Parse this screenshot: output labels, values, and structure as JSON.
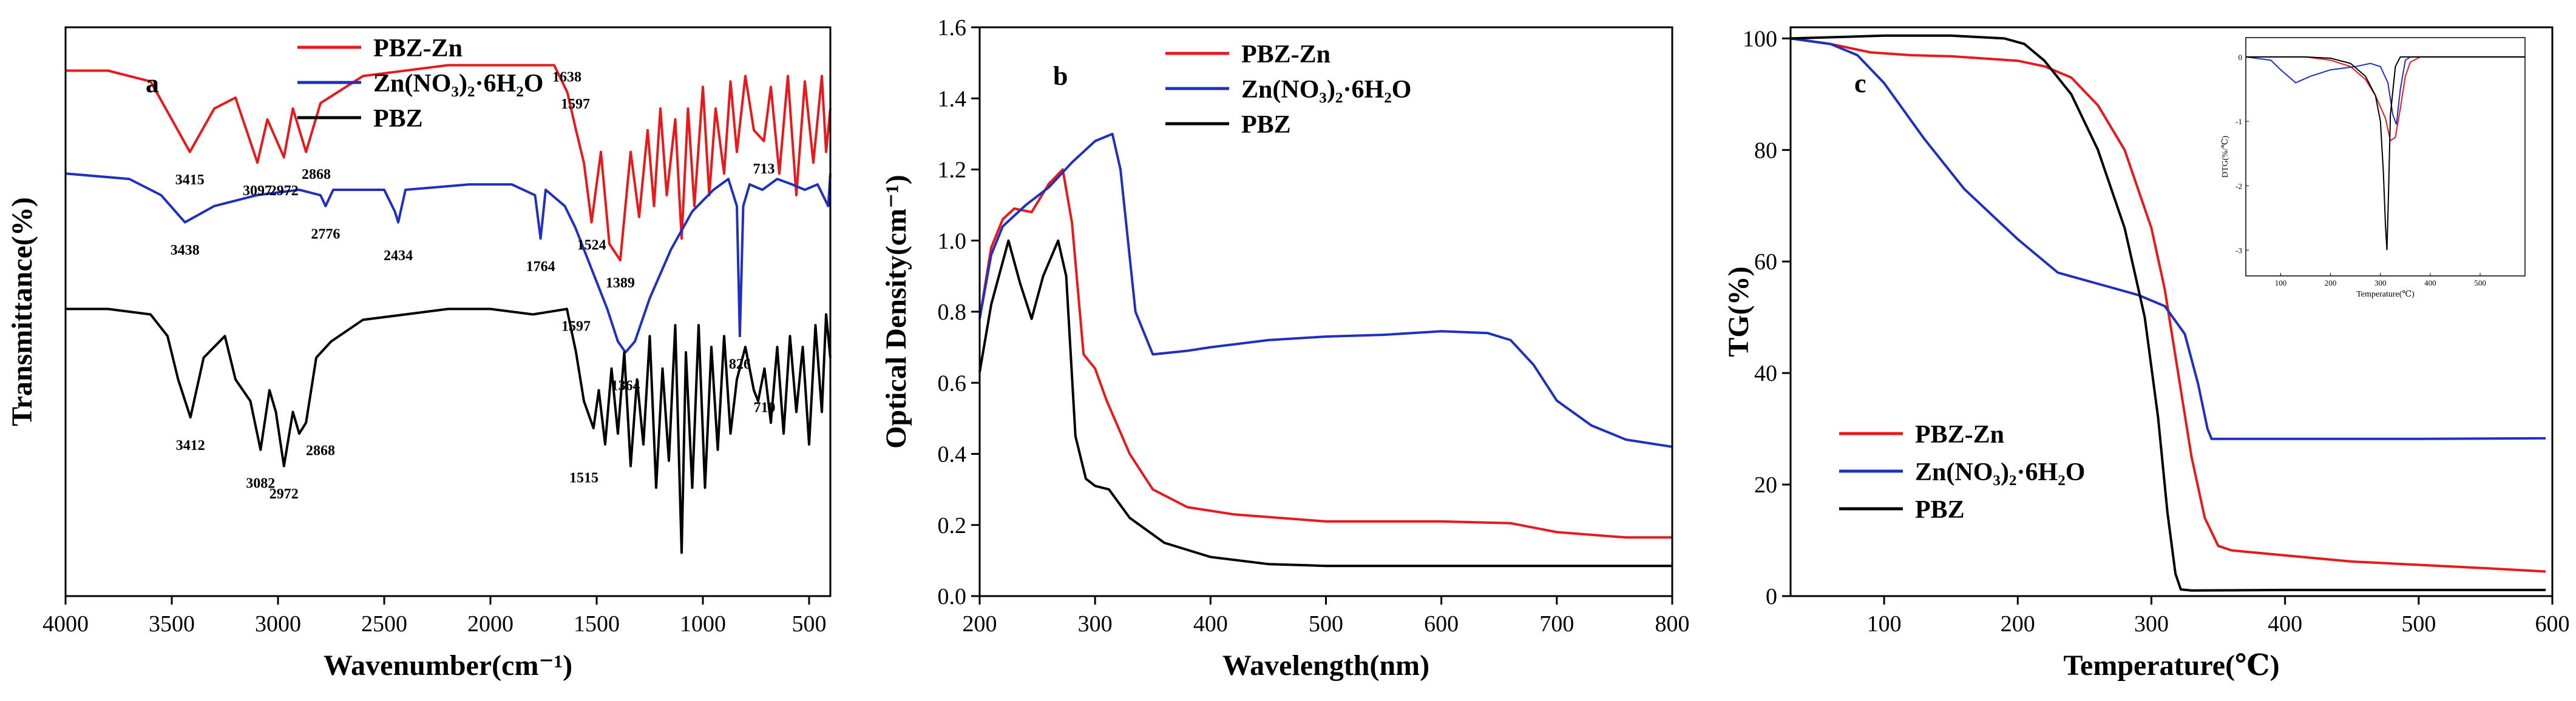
{
  "colors": {
    "red": "#e8191b",
    "blue": "#1f2fc0",
    "black": "#000000"
  },
  "chart_data": [
    {
      "panel": "a",
      "type": "line",
      "xlabel": "Wavenumber(cm⁻¹)",
      "ylabel": "Transmittance(%)",
      "xlim": [
        4000,
        400
      ],
      "xticks": [
        4000,
        3500,
        3000,
        2500,
        2000,
        1500,
        1000,
        500
      ],
      "yticks_shown": false,
      "legend": {
        "position": "top-left",
        "entries": [
          "PBZ-Zn",
          "Zn(NO₃)₂·6H₂O",
          "PBZ"
        ]
      },
      "series": [
        {
          "name": "PBZ-Zn",
          "color": "red",
          "x": [
            4000,
            3800,
            3600,
            3500,
            3415,
            3300,
            3200,
            3097,
            3050,
            2972,
            2930,
            2868,
            2800,
            2600,
            2200,
            1700,
            1638,
            1597,
            1560,
            1524,
            1480,
            1440,
            1389,
            1340,
            1300,
            1260,
            1230,
            1200,
            1170,
            1130,
            1100,
            1070,
            1040,
            1000,
            970,
            940,
            900,
            870,
            840,
            800,
            760,
            713,
            680,
            640,
            600,
            560,
            520,
            480,
            440,
            420,
            400
          ],
          "y": [
            0.97,
            0.97,
            0.95,
            0.88,
            0.82,
            0.9,
            0.92,
            0.8,
            0.88,
            0.81,
            0.9,
            0.82,
            0.91,
            0.96,
            0.98,
            0.98,
            0.93,
            0.86,
            0.8,
            0.69,
            0.82,
            0.65,
            0.62,
            0.82,
            0.7,
            0.86,
            0.72,
            0.9,
            0.74,
            0.88,
            0.66,
            0.9,
            0.72,
            0.94,
            0.74,
            0.9,
            0.78,
            0.95,
            0.82,
            0.96,
            0.86,
            0.84,
            0.94,
            0.78,
            0.96,
            0.74,
            0.95,
            0.8,
            0.96,
            0.82,
            0.9
          ]
        },
        {
          "name": "Zn(NO₃)₂·6H₂O",
          "color": "blue",
          "x": [
            4000,
            3700,
            3550,
            3438,
            3300,
            3100,
            2900,
            2800,
            2776,
            2740,
            2500,
            2450,
            2434,
            2400,
            2100,
            1900,
            1790,
            1764,
            1740,
            1650,
            1600,
            1550,
            1500,
            1450,
            1400,
            1364,
            1320,
            1250,
            1150,
            1050,
            950,
            880,
            840,
            826,
            810,
            780,
            720,
            650,
            580,
            520,
            460,
            410,
            400
          ],
          "y": [
            0.78,
            0.77,
            0.74,
            0.69,
            0.72,
            0.74,
            0.75,
            0.74,
            0.72,
            0.75,
            0.75,
            0.71,
            0.69,
            0.75,
            0.76,
            0.76,
            0.74,
            0.66,
            0.75,
            0.72,
            0.68,
            0.63,
            0.58,
            0.53,
            0.47,
            0.45,
            0.47,
            0.55,
            0.64,
            0.71,
            0.75,
            0.77,
            0.72,
            0.48,
            0.72,
            0.76,
            0.75,
            0.77,
            0.76,
            0.75,
            0.76,
            0.72,
            0.78
          ]
        },
        {
          "name": "PBZ",
          "color": "black",
          "x": [
            4000,
            3800,
            3600,
            3520,
            3470,
            3412,
            3350,
            3250,
            3200,
            3130,
            3082,
            3040,
            3010,
            2972,
            2930,
            2900,
            2868,
            2820,
            2750,
            2600,
            2400,
            2200,
            2000,
            1800,
            1640,
            1597,
            1560,
            1515,
            1490,
            1460,
            1430,
            1400,
            1370,
            1340,
            1310,
            1280,
            1250,
            1220,
            1190,
            1160,
            1130,
            1100,
            1080,
            1050,
            1020,
            990,
            960,
            930,
            900,
            870,
            840,
            800,
            760,
            740,
            710,
            680,
            650,
            620,
            590,
            560,
            530,
            500,
            470,
            440,
            420,
            400
          ],
          "y": [
            0.53,
            0.53,
            0.52,
            0.48,
            0.4,
            0.33,
            0.44,
            0.48,
            0.4,
            0.36,
            0.27,
            0.38,
            0.34,
            0.24,
            0.34,
            0.3,
            0.32,
            0.44,
            0.47,
            0.51,
            0.52,
            0.53,
            0.53,
            0.52,
            0.53,
            0.45,
            0.36,
            0.31,
            0.38,
            0.28,
            0.42,
            0.3,
            0.45,
            0.24,
            0.4,
            0.28,
            0.48,
            0.2,
            0.42,
            0.25,
            0.5,
            0.08,
            0.45,
            0.2,
            0.5,
            0.2,
            0.46,
            0.27,
            0.48,
            0.3,
            0.4,
            0.46,
            0.38,
            0.36,
            0.42,
            0.32,
            0.46,
            0.3,
            0.48,
            0.34,
            0.46,
            0.28,
            0.5,
            0.34,
            0.52,
            0.44
          ]
        }
      ],
      "annotations": [
        {
          "text": "3415",
          "x": 3415,
          "y": 0.76
        },
        {
          "text": "3097",
          "x": 3097,
          "y": 0.74
        },
        {
          "text": "2972",
          "x": 2972,
          "y": 0.74
        },
        {
          "text": "2868",
          "x": 2820,
          "y": 0.77
        },
        {
          "text": "1638",
          "x": 1640,
          "y": 0.95
        },
        {
          "text": "1597",
          "x": 1600,
          "y": 0.9
        },
        {
          "text": "1524",
          "x": 1524,
          "y": 0.64
        },
        {
          "text": "1389",
          "x": 1389,
          "y": 0.57
        },
        {
          "text": "713",
          "x": 713,
          "y": 0.78
        },
        {
          "text": "3438",
          "x": 3438,
          "y": 0.63
        },
        {
          "text": "2776",
          "x": 2776,
          "y": 0.66
        },
        {
          "text": "2434",
          "x": 2434,
          "y": 0.62
        },
        {
          "text": "1764",
          "x": 1764,
          "y": 0.6
        },
        {
          "text": "1364",
          "x": 1364,
          "y": 0.38
        },
        {
          "text": "826",
          "x": 826,
          "y": 0.42
        },
        {
          "text": "1597",
          "x": 1597,
          "y": 0.49
        },
        {
          "text": "3412",
          "x": 3412,
          "y": 0.27
        },
        {
          "text": "3082",
          "x": 3082,
          "y": 0.2
        },
        {
          "text": "2972",
          "x": 2972,
          "y": 0.18
        },
        {
          "text": "2868",
          "x": 2800,
          "y": 0.26
        },
        {
          "text": "1515",
          "x": 1560,
          "y": 0.21
        },
        {
          "text": "710",
          "x": 710,
          "y": 0.34
        }
      ]
    },
    {
      "panel": "b",
      "type": "line",
      "xlabel": "Wavelength(nm)",
      "ylabel": "Optical Density(cm⁻¹)",
      "xlim": [
        200,
        800
      ],
      "ylim": [
        0,
        1.6
      ],
      "xticks": [
        200,
        300,
        400,
        500,
        600,
        700,
        800
      ],
      "yticks": [
        0.0,
        0.2,
        0.4,
        0.6,
        0.8,
        1.0,
        1.2,
        1.4,
        1.6
      ],
      "legend": {
        "position": "top-right",
        "entries": [
          "PBZ-Zn",
          "Zn(NO₃)₂·6H₂O",
          "PBZ"
        ]
      },
      "series": [
        {
          "name": "PBZ-Zn",
          "color": "red",
          "x": [
            200,
            210,
            220,
            230,
            245,
            260,
            272,
            280,
            290,
            300,
            310,
            330,
            350,
            380,
            420,
            500,
            600,
            660,
            700,
            760,
            800
          ],
          "y": [
            0.78,
            0.98,
            1.06,
            1.09,
            1.08,
            1.16,
            1.2,
            1.05,
            0.68,
            0.64,
            0.55,
            0.4,
            0.3,
            0.25,
            0.23,
            0.21,
            0.21,
            0.205,
            0.18,
            0.165,
            0.165
          ]
        },
        {
          "name": "Zn(NO₃)₂·6H₂O",
          "color": "blue",
          "x": [
            200,
            210,
            220,
            240,
            260,
            280,
            300,
            315,
            322,
            335,
            350,
            380,
            400,
            450,
            500,
            550,
            600,
            640,
            660,
            680,
            700,
            730,
            760,
            800
          ],
          "y": [
            0.78,
            0.96,
            1.04,
            1.1,
            1.15,
            1.22,
            1.28,
            1.3,
            1.2,
            0.8,
            0.68,
            0.69,
            0.7,
            0.72,
            0.73,
            0.735,
            0.745,
            0.74,
            0.72,
            0.65,
            0.55,
            0.48,
            0.44,
            0.42
          ]
        },
        {
          "name": "PBZ",
          "color": "black",
          "x": [
            200,
            210,
            225,
            235,
            245,
            255,
            268,
            275,
            283,
            292,
            300,
            312,
            330,
            360,
            400,
            450,
            500,
            600,
            700,
            800
          ],
          "y": [
            0.63,
            0.82,
            1.0,
            0.88,
            0.78,
            0.9,
            1.0,
            0.9,
            0.45,
            0.33,
            0.31,
            0.3,
            0.22,
            0.15,
            0.11,
            0.09,
            0.085,
            0.085,
            0.085,
            0.085
          ]
        }
      ]
    },
    {
      "panel": "c",
      "type": "line",
      "xlabel": "Temperature(℃)",
      "ylabel": "TG(%)",
      "xlim": [
        30,
        600
      ],
      "ylim": [
        0,
        102
      ],
      "xticks": [
        100,
        200,
        300,
        400,
        500,
        600
      ],
      "yticks": [
        0,
        20,
        40,
        60,
        80,
        100
      ],
      "legend": {
        "position": "bottom-left",
        "entries": [
          "PBZ-Zn",
          "Zn(NO₃)₂·6H₂O",
          "PBZ"
        ]
      },
      "series": [
        {
          "name": "PBZ-Zn",
          "color": "red",
          "x": [
            30,
            60,
            90,
            120,
            150,
            200,
            220,
            240,
            260,
            280,
            300,
            310,
            320,
            330,
            340,
            350,
            360,
            400,
            450,
            500,
            550,
            595
          ],
          "y": [
            100,
            99,
            97.5,
            97,
            96.8,
            96,
            95,
            93,
            88,
            80,
            66,
            55,
            40,
            25,
            14,
            9,
            8.2,
            7.3,
            6.2,
            5.6,
            5.0,
            4.4
          ]
        },
        {
          "name": "Zn(NO₃)₂·6H₂O",
          "color": "blue",
          "x": [
            30,
            60,
            80,
            100,
            130,
            160,
            200,
            230,
            260,
            290,
            310,
            325,
            335,
            342,
            345,
            400,
            500,
            595
          ],
          "y": [
            100,
            99,
            97,
            92,
            82,
            73,
            64,
            58,
            56,
            54,
            52,
            47,
            38,
            30,
            28.2,
            28.2,
            28.2,
            28.3
          ]
        },
        {
          "name": "PBZ",
          "color": "black",
          "x": [
            30,
            100,
            150,
            190,
            205,
            220,
            240,
            260,
            280,
            295,
            305,
            312,
            318,
            322,
            330,
            400,
            500,
            595
          ],
          "y": [
            100,
            100.5,
            100.5,
            100,
            99,
            96,
            90,
            80,
            66,
            50,
            32,
            15,
            4,
            1.2,
            1,
            1.1,
            1.1,
            1.1
          ]
        }
      ],
      "inset": {
        "xlabel": "Temperature(℃)",
        "ylabel": "DTG(%/℃)",
        "xlim": [
          30,
          590
        ],
        "ylim": [
          -3.4,
          0.3
        ],
        "xticks": [
          100,
          200,
          300,
          400,
          500
        ],
        "yticks": [
          0,
          -1,
          -2,
          -3
        ],
        "series": [
          {
            "name": "PBZ-Zn",
            "color": "red",
            "x": [
              30,
              150,
              200,
              240,
              270,
              290,
              310,
              320,
              330,
              340,
              350,
              360,
              380,
              590
            ],
            "y": [
              0,
              0,
              -0.05,
              -0.15,
              -0.35,
              -0.6,
              -0.95,
              -1.3,
              -1.25,
              -0.8,
              -0.3,
              -0.08,
              0,
              0
            ]
          },
          {
            "name": "Zn(NO₃)₂·6H₂O",
            "color": "blue",
            "x": [
              30,
              80,
              100,
              130,
              160,
              200,
              250,
              280,
              300,
              315,
              325,
              332,
              340,
              350,
              360,
              590
            ],
            "y": [
              0,
              -0.05,
              -0.2,
              -0.4,
              -0.3,
              -0.2,
              -0.15,
              -0.1,
              -0.15,
              -0.4,
              -0.9,
              -1.05,
              -0.5,
              -0.05,
              0,
              0
            ]
          },
          {
            "name": "PBZ",
            "color": "black",
            "x": [
              30,
              150,
              200,
              240,
              270,
              290,
              300,
              306,
              310,
              313,
              316,
              320,
              330,
              340,
              590
            ],
            "y": [
              0,
              0,
              -0.02,
              -0.1,
              -0.3,
              -0.6,
              -1.0,
              -1.8,
              -2.6,
              -3.0,
              -2.2,
              -0.9,
              -0.15,
              0,
              0
            ]
          }
        ]
      }
    }
  ]
}
